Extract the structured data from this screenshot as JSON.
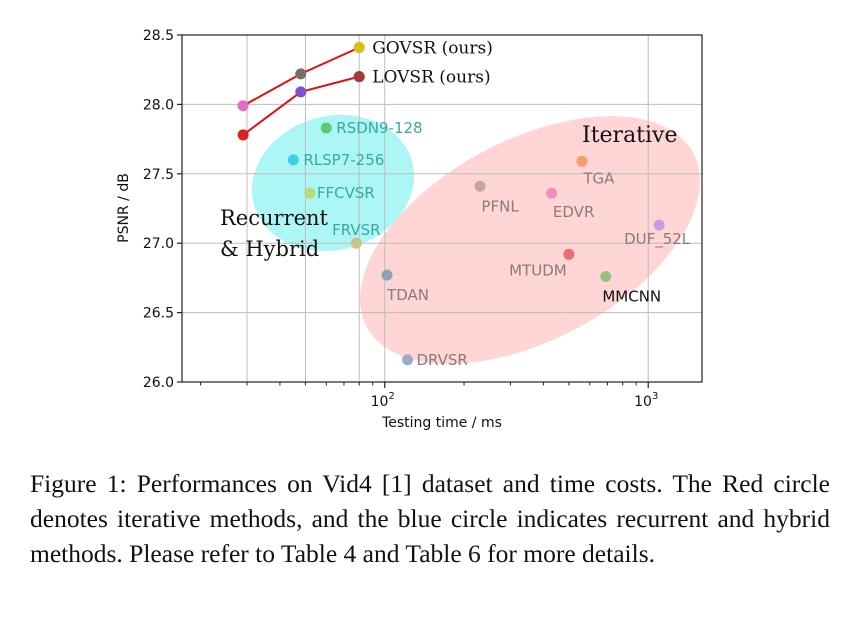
{
  "chart_data": {
    "type": "scatter",
    "xlabel": "Testing time / ms",
    "ylabel": "PSNR / dB",
    "xscale": "log",
    "xlim": [
      17,
      1600
    ],
    "ylim": [
      26.0,
      28.5
    ],
    "grid": true,
    "yticks": [
      "26.0",
      "26.5",
      "27.0",
      "27.5",
      "28.0",
      "28.5"
    ],
    "xticks": [
      {
        "value": 100,
        "base": "10",
        "exp": "2"
      },
      {
        "value": 1000,
        "base": "10",
        "exp": "3"
      }
    ],
    "points": [
      {
        "name": "GOVSR (ours)",
        "x": 80,
        "y": 28.41,
        "color": "#d4c017",
        "label_color": "#111111"
      },
      {
        "name": "LOVSR (ours)",
        "x": 80,
        "y": 28.2,
        "color": "#a33a3a",
        "label_color": "#111111"
      },
      {
        "name": "RSDN9-128",
        "x": 60,
        "y": 27.83,
        "color": "#5cc87c",
        "label_color": "#3aa8a0"
      },
      {
        "name": "RLSP7-256",
        "x": 45,
        "y": 27.6,
        "color": "#3fcdea",
        "label_color": "#3aa8a0"
      },
      {
        "name": "FFCVSR",
        "x": 52,
        "y": 27.36,
        "color": "#b6d97a",
        "label_color": "#3aa8a0"
      },
      {
        "name": "FRVSR",
        "x": 78,
        "y": 27.0,
        "color": "#c9c487",
        "label_color": "#3aa8a0"
      },
      {
        "name": "TGA",
        "x": 560,
        "y": 27.59,
        "color": "#f5a06a",
        "label_color": "#8a7b7b"
      },
      {
        "name": "PFNL",
        "x": 230,
        "y": 27.41,
        "color": "#c4a5a5",
        "label_color": "#8a7b7b"
      },
      {
        "name": "EDVR",
        "x": 430,
        "y": 27.36,
        "color": "#f08fbf",
        "label_color": "#8a7b7b"
      },
      {
        "name": "DUF_52L",
        "x": 1100,
        "y": 27.13,
        "color": "#c79bdd",
        "label_color": "#8a7b7b"
      },
      {
        "name": "MTUDM",
        "x": 500,
        "y": 26.92,
        "color": "#ea6e6e",
        "label_color": "#8a7b7b"
      },
      {
        "name": "MMCNN",
        "x": 690,
        "y": 26.76,
        "color": "#99bf7a",
        "label_color": "#111111"
      },
      {
        "name": "TDAN",
        "x": 102,
        "y": 26.77,
        "color": "#8f9fb6",
        "label_color": "#8a7b7b"
      },
      {
        "name": "DRVSR",
        "x": 122,
        "y": 26.16,
        "color": "#9fa9c7",
        "label_color": "#8a7b7b"
      }
    ],
    "curves": [
      {
        "color": "#e01010",
        "points": [
          [
            29,
            27.99
          ],
          [
            48,
            28.22
          ],
          [
            80,
            28.41
          ]
        ],
        "marker_colors": [
          "#e86ac4",
          "#7d6a6a",
          "#d4c017"
        ]
      },
      {
        "color": "#e01010",
        "points": [
          [
            29,
            27.78
          ],
          [
            48,
            28.09
          ],
          [
            80,
            28.2
          ]
        ],
        "marker_colors": [
          "#dd2020",
          "#7b4fd6",
          "#a33a3a"
        ]
      }
    ],
    "regions": [
      {
        "name": "Iterative",
        "color": "#ffc7c7"
      },
      {
        "name": "Recurrent & Hybrid",
        "lines": [
          "Recurrent",
          "& Hybrid"
        ],
        "color": "#9ff5f5"
      }
    ]
  },
  "caption": "Figure 1: Performances on Vid4 [1] dataset and time costs. The Red circle denotes iterative methods, and the blue circle indicates recurrent and hybrid methods. Please refer to Table 4 and Table 6 for more details."
}
